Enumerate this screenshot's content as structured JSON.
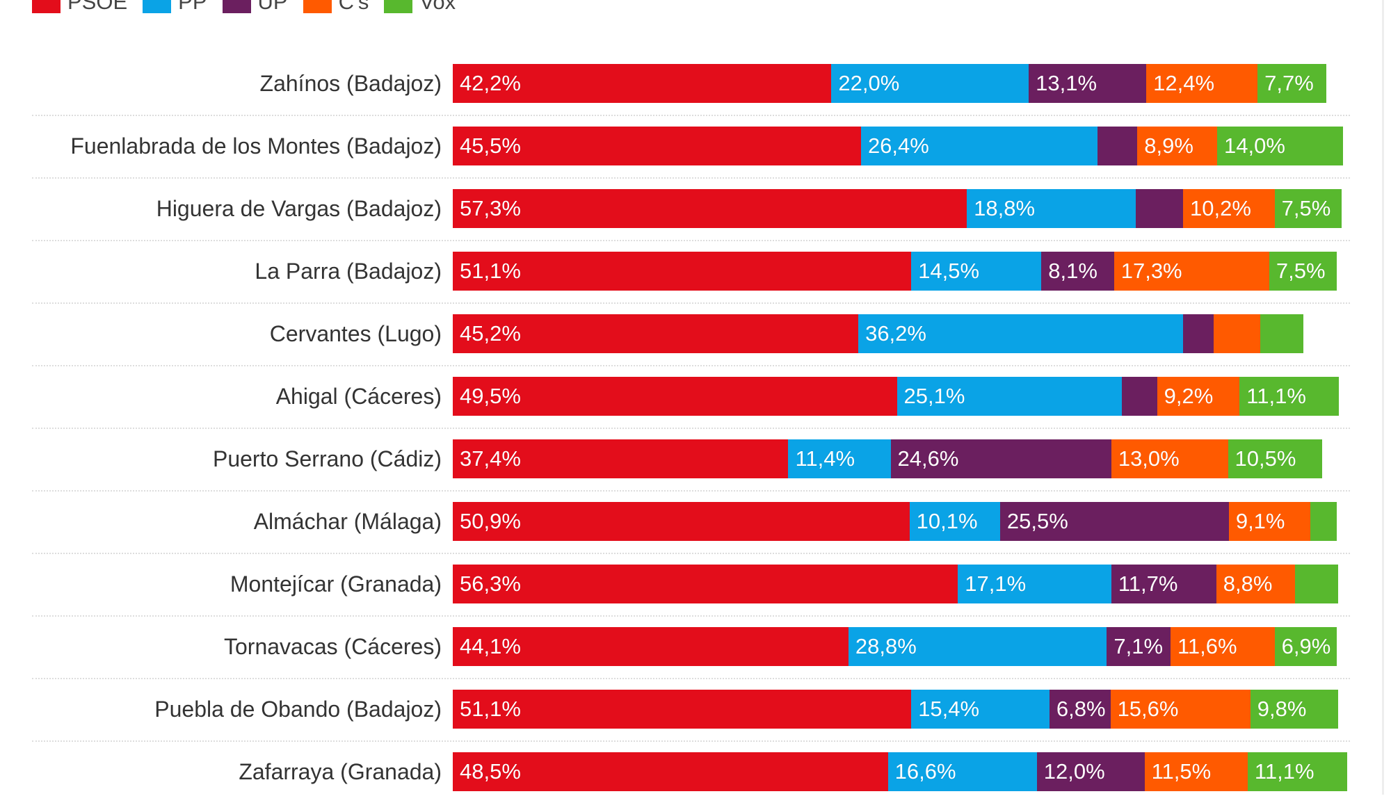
{
  "chart_data": {
    "type": "bar",
    "orientation": "horizontal",
    "stacked": true,
    "legend": {
      "placement": "top-left",
      "items": [
        "PSOE",
        "PP",
        "UP",
        "C's",
        "Vox"
      ]
    },
    "colors": {
      "PSOE": "#e30d1b",
      "PP": "#0aa3e6",
      "UP": "#6b1f5f",
      "C's": "#ff5a00",
      "Vox": "#58b82e"
    },
    "categories": [
      "Zahínos (Badajoz)",
      "Fuenlabrada de los Montes (Badajoz)",
      "Higuera de Vargas (Badajoz)",
      "La Parra (Badajoz)",
      "Cervantes (Lugo)",
      "Ahigal (Cáceres)",
      "Puerto Serrano (Cádiz)",
      "Almáchar (Málaga)",
      "Montejícar (Granada)",
      "Tornavacas (Cáceres)",
      "Puebla de Obando (Badajoz)",
      "Zafarraya (Granada)"
    ],
    "series": [
      {
        "name": "PSOE",
        "values": [
          42.2,
          45.5,
          57.3,
          51.1,
          45.2,
          49.5,
          37.4,
          50.9,
          56.3,
          44.1,
          51.1,
          48.5
        ],
        "labels": [
          "42,2%",
          "45,5%",
          "57,3%",
          "51,1%",
          "45,2%",
          "49,5%",
          "37,4%",
          "50,9%",
          "56,3%",
          "44,1%",
          "51,1%",
          "48,5%"
        ]
      },
      {
        "name": "PP",
        "values": [
          22.0,
          26.4,
          18.8,
          14.5,
          36.2,
          25.1,
          11.4,
          10.1,
          17.1,
          28.8,
          15.4,
          16.6
        ],
        "labels": [
          "22,0%",
          "26,4%",
          "18,8%",
          "14,5%",
          "36,2%",
          "25,1%",
          "11,4%",
          "10,1%",
          "17,1%",
          "28,8%",
          "15,4%",
          "16,6%"
        ]
      },
      {
        "name": "UP",
        "values": [
          13.1,
          4.4,
          5.3,
          8.1,
          3.4,
          3.9,
          24.6,
          25.5,
          11.7,
          7.1,
          6.8,
          12.0
        ],
        "labels": [
          "13,1%",
          "",
          "",
          "8,1%",
          "",
          "",
          "24,6%",
          "25,5%",
          "11,7%",
          "7,1%",
          "6,8%",
          "12,0%"
        ]
      },
      {
        "name": "C's",
        "values": [
          12.4,
          8.9,
          10.2,
          17.3,
          5.2,
          9.2,
          13.0,
          9.1,
          8.8,
          11.6,
          15.6,
          11.5
        ],
        "labels": [
          "12,4%",
          "8,9%",
          "10,2%",
          "17,3%",
          "",
          "9,2%",
          "13,0%",
          "9,1%",
          "8,8%",
          "11,6%",
          "15,6%",
          "11,5%"
        ]
      },
      {
        "name": "Vox",
        "values": [
          7.7,
          14.0,
          7.5,
          7.5,
          4.8,
          11.1,
          10.5,
          2.9,
          4.8,
          6.9,
          9.8,
          11.1
        ],
        "labels": [
          "7,7%",
          "14,0%",
          "7,5%",
          "7,5%",
          "",
          "11,1%",
          "10,5%",
          "",
          "",
          "6,9%",
          "9,8%",
          "11,1%"
        ]
      }
    ],
    "xlim": [
      0,
      100
    ],
    "grid": false
  }
}
